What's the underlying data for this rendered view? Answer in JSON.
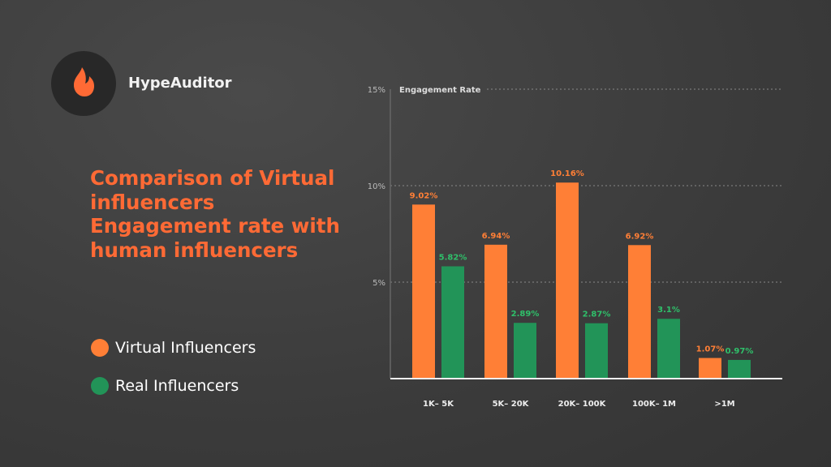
{
  "brand": {
    "name": "HypeAuditor",
    "logo_icon": "flame-icon",
    "accent": "#ff6a35"
  },
  "title": "Comparison of Virtual influencers Engagement rate with human influencers",
  "legend": [
    {
      "label": "Virtual Influencers",
      "color": "#ff7f36"
    },
    {
      "label": "Real Influencers",
      "color": "#229458"
    }
  ],
  "chart_data": {
    "type": "bar",
    "ylabel": "Engagement Rate",
    "ylim": [
      0,
      15
    ],
    "yticks": [
      "5%",
      "10%",
      "15%"
    ],
    "ytick_values": [
      5,
      10,
      15
    ],
    "grid": true,
    "legend_placement": "left",
    "categories": [
      "1K– 5K",
      "5K– 20K",
      "20K– 100K",
      "100K– 1M",
      ">1M"
    ],
    "series": [
      {
        "name": "Virtual Influencers",
        "color": "#ff7f36",
        "values": [
          9.02,
          6.94,
          10.16,
          6.92,
          1.07
        ],
        "labels": [
          "9.02%",
          "6.94%",
          "10.16%",
          "6.92%",
          "1.07%"
        ]
      },
      {
        "name": "Real Influencers",
        "color": "#229458",
        "label_color": "#2fc06a",
        "values": [
          5.82,
          2.89,
          2.87,
          3.1,
          0.97
        ],
        "labels": [
          "5.82%",
          "2.89%",
          "2.87%",
          "3.1%",
          "0.97%"
        ]
      }
    ]
  }
}
